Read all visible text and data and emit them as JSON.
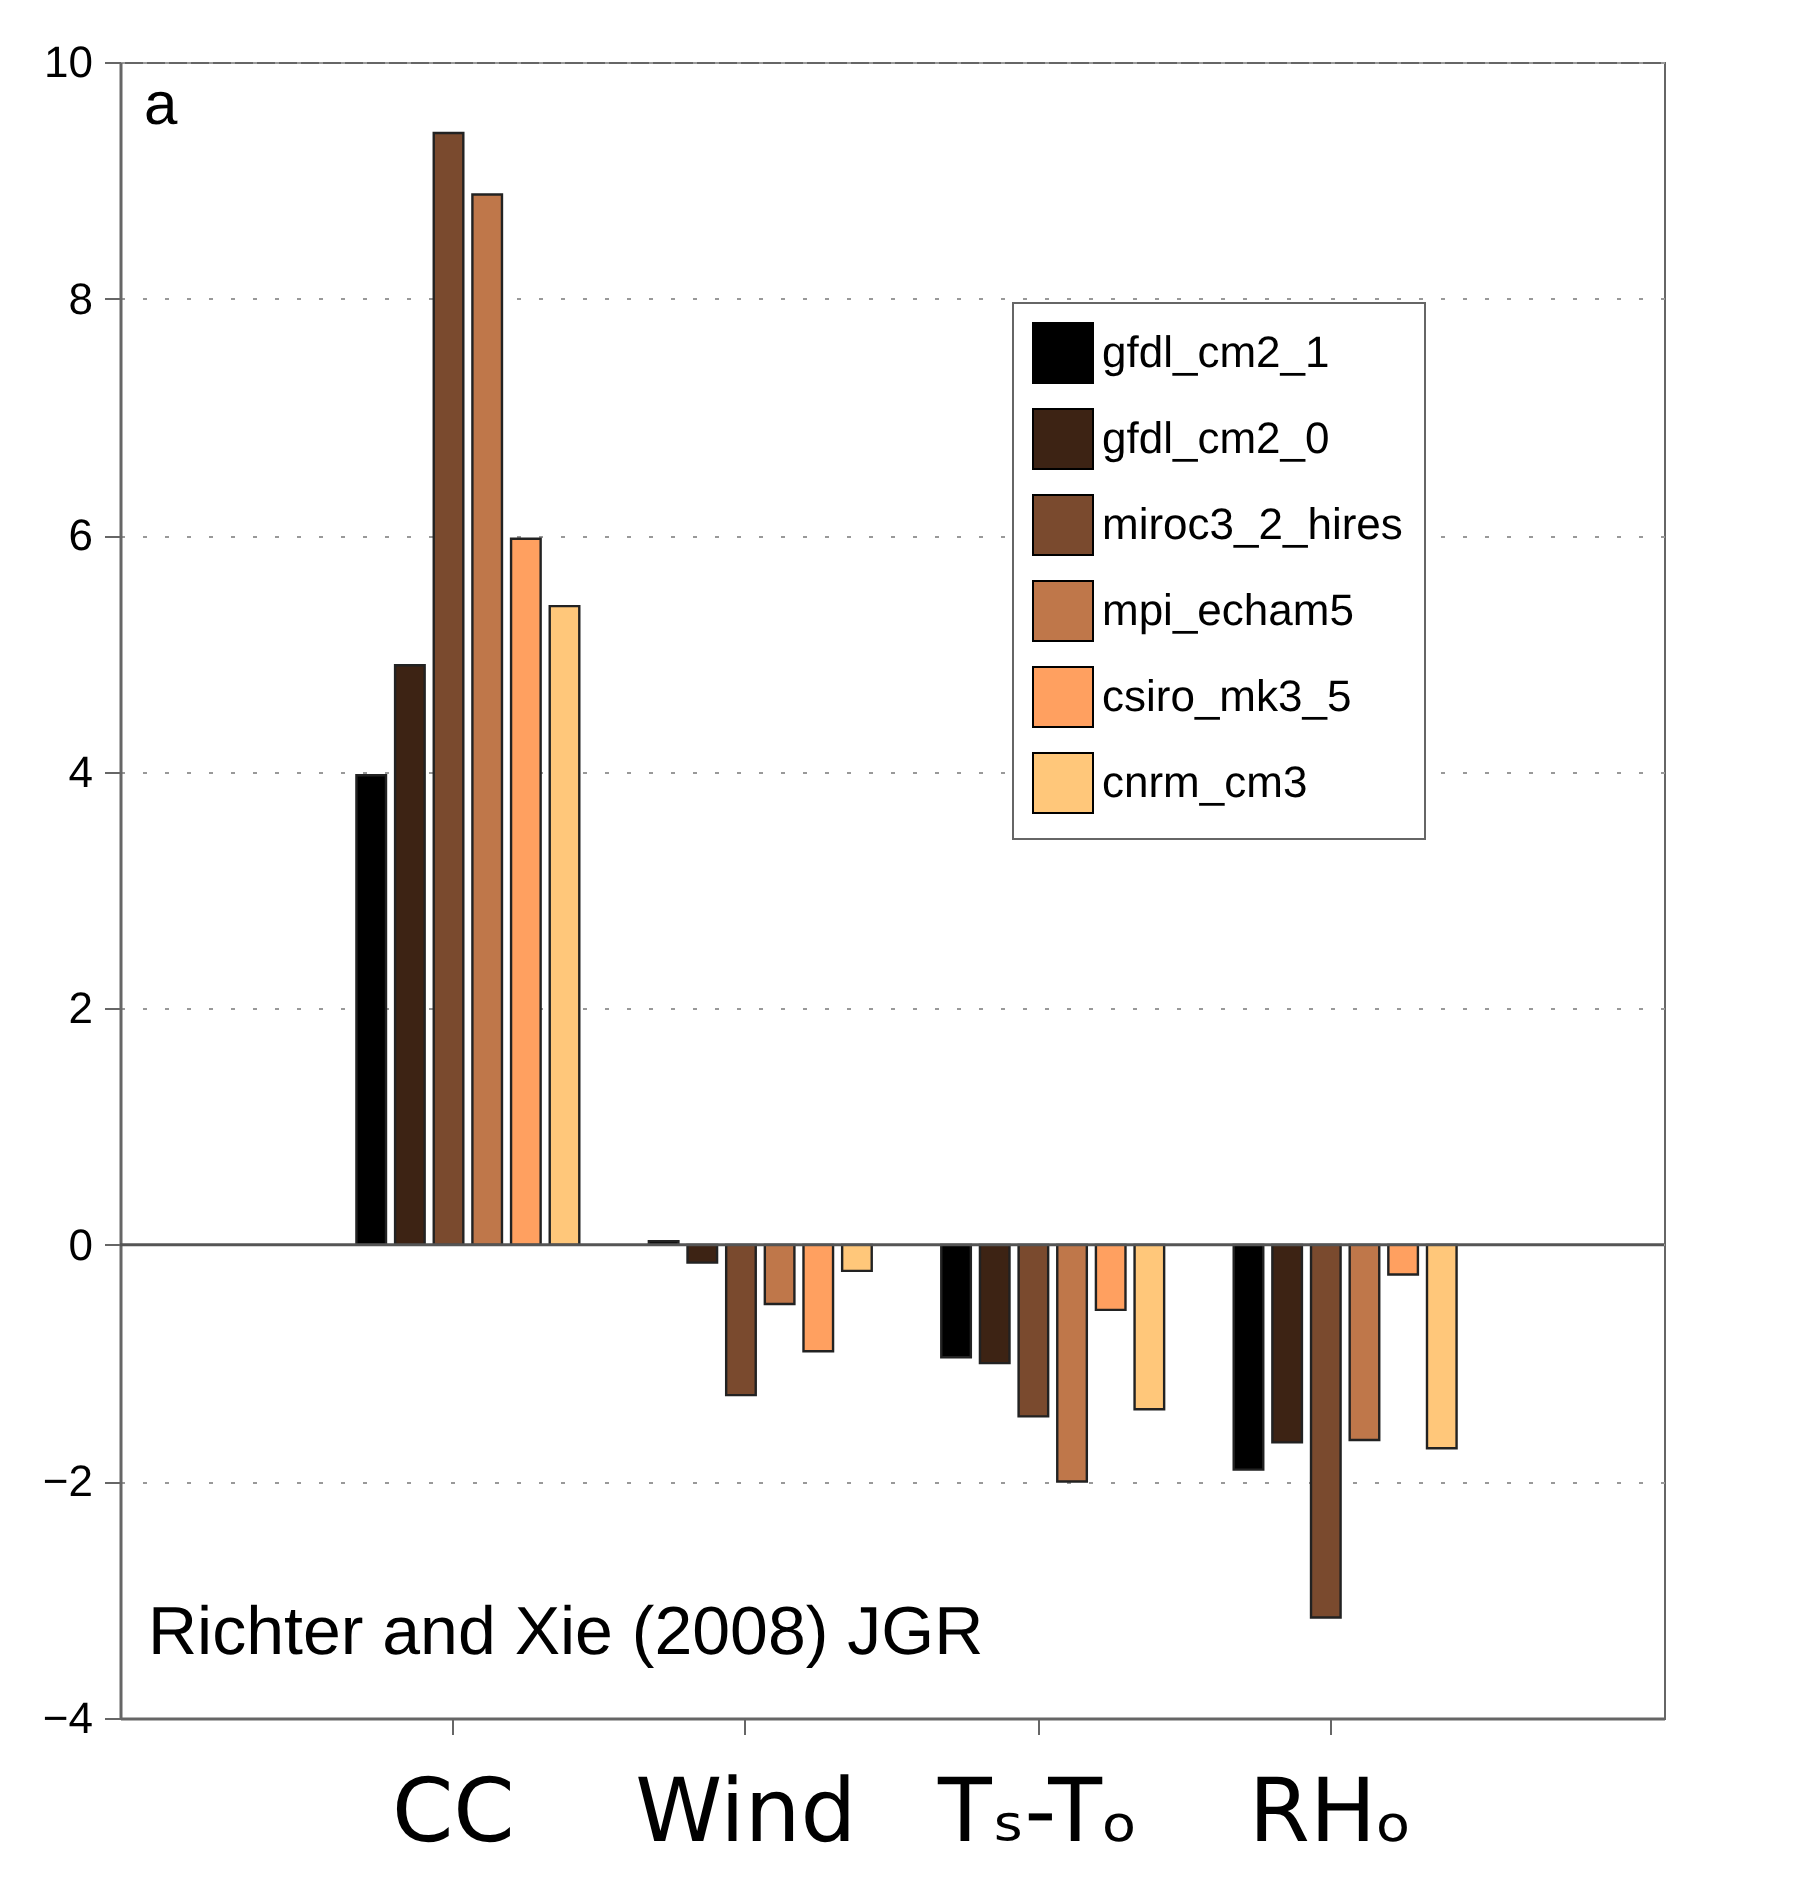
{
  "chart_data": {
    "type": "bar",
    "categories": [
      "CC",
      "Wind",
      "Tₛ-Tₒ",
      "RHₒ"
    ],
    "series": [
      {
        "name": "gfdl_cm2_1",
        "color": "#000000",
        "values": [
          3.97,
          0.03,
          -0.95,
          -1.9
        ]
      },
      {
        "name": "gfdl_cm2_0",
        "color": "#3d2314",
        "values": [
          4.9,
          -0.15,
          -1.0,
          -1.67
        ]
      },
      {
        "name": "miroc3_2_hires",
        "color": "#7a4a2e",
        "values": [
          9.4,
          -1.27,
          -1.45,
          -3.15
        ]
      },
      {
        "name": "mpi_echam5",
        "color": "#bf774a",
        "values": [
          8.88,
          -0.5,
          -2.0,
          -1.65
        ]
      },
      {
        "name": "csiro_mk3_5",
        "color": "#ffa060",
        "values": [
          5.97,
          -0.9,
          -0.55,
          -0.25
        ]
      },
      {
        "name": "cnrm_cm3",
        "color": "#ffc77a",
        "values": [
          5.4,
          -0.22,
          -1.39,
          -1.72
        ]
      }
    ],
    "ylim": [
      -4,
      10
    ],
    "yticks": [
      -4,
      -2,
      0,
      2,
      4,
      6,
      8,
      10
    ],
    "grid": "y",
    "legend": "top right",
    "annotations": [
      "a",
      "Richter and Xie (2008) JGR"
    ]
  }
}
